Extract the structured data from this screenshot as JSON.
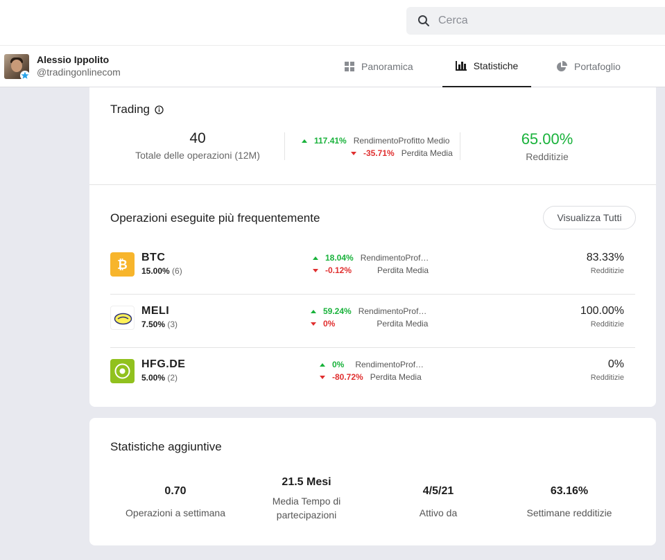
{
  "search": {
    "placeholder": "Cerca"
  },
  "profile": {
    "name": "Alessio Ippolito",
    "handle": "@tradingonlinecom"
  },
  "tabs": [
    {
      "label": "Panoramica",
      "icon": "grid-icon",
      "active": false
    },
    {
      "label": "Statistiche",
      "icon": "bar-chart-icon",
      "active": true
    },
    {
      "label": "Portafoglio",
      "icon": "pie-chart-icon",
      "active": false
    }
  ],
  "trading": {
    "title": "Trading",
    "total_value": "40",
    "total_label": "Totale delle operazioni (12M)",
    "avg_profit_value": "117.41%",
    "avg_profit_label": "RendimentoProfitto Medio",
    "avg_loss_value": "-35.71%",
    "avg_loss_label": "Perdita Media",
    "profitability_value": "65.00%",
    "profitability_label": "Redditizie"
  },
  "frequent": {
    "title": "Operazioni eseguite più frequentemente",
    "view_all_label": "Visualizza Tutti",
    "items": [
      {
        "symbol": "BTC",
        "share": "15.00%",
        "count": "(6)",
        "profit": "18.04%",
        "profit_label": "RendimentoProf…",
        "loss": "-0.12%",
        "loss_label": "Perdita Media",
        "profitability": "83.33%",
        "profitability_label": "Redditizie",
        "logo": "bitcoin-logo-icon"
      },
      {
        "symbol": "MELI",
        "share": "7.50%",
        "count": "(3)",
        "profit": "59.24%",
        "profit_label": "RendimentoProf…",
        "loss": "0%",
        "loss_label": "Perdita Media",
        "profitability": "100.00%",
        "profitability_label": "Redditizie",
        "logo": "mercadolibre-logo-icon"
      },
      {
        "symbol": "HFG.DE",
        "share": "5.00%",
        "count": "(2)",
        "profit": "0%",
        "profit_label": "RendimentoProf…",
        "loss": "-80.72%",
        "loss_label": "Perdita Media",
        "profitability": "0%",
        "profitability_label": "Redditizie",
        "logo": "hellofresh-logo-icon"
      }
    ]
  },
  "additional": {
    "title": "Statistiche aggiuntive",
    "items": [
      {
        "value": "0.70",
        "label": "Operazioni a settimana"
      },
      {
        "value": "21.5 Mesi",
        "label": "Media Tempo di partecipazioni"
      },
      {
        "value": "4/5/21",
        "label": "Attivo da"
      },
      {
        "value": "63.16%",
        "label": "Settimane redditizie"
      }
    ]
  },
  "colors": {
    "green": "#19b23b",
    "red": "#e02f2f",
    "btc": "#f7b52c",
    "hellofresh": "#91c11e"
  }
}
